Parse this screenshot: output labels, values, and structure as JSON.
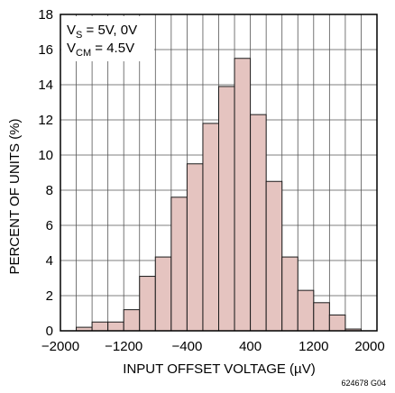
{
  "chart_data": {
    "type": "bar",
    "title": "",
    "xlabel": "INPUT OFFSET VOLTAGE (µV)",
    "ylabel": "PERCENT OF UNITS (%)",
    "xlim": [
      -2000,
      2000
    ],
    "ylim": [
      0,
      18
    ],
    "bin_width": 200,
    "bins_x_left": [
      -2000,
      -1800,
      -1600,
      -1400,
      -1200,
      -1000,
      -800,
      -600,
      -400,
      -200,
      0,
      200,
      400,
      600,
      800,
      1000,
      1200,
      1400,
      1600,
      1800
    ],
    "values": [
      0.0,
      0.2,
      0.5,
      0.5,
      1.2,
      3.1,
      4.2,
      7.6,
      9.5,
      11.8,
      13.9,
      15.5,
      12.3,
      8.5,
      4.2,
      2.3,
      1.6,
      0.9,
      0.1,
      0.0
    ],
    "x_ticks": [
      -2000,
      -1600,
      -1200,
      -800,
      -400,
      0,
      400,
      800,
      1200,
      1600,
      2000
    ],
    "x_tick_labels": [
      "−2000",
      "",
      "−1200",
      "",
      "−400",
      "",
      "400",
      "",
      "1200",
      "",
      "2000"
    ],
    "y_ticks": [
      0,
      2,
      4,
      6,
      8,
      10,
      12,
      14,
      16,
      18
    ],
    "y_tick_labels": [
      "0",
      "2",
      "4",
      "6",
      "8",
      "10",
      "12",
      "14",
      "16",
      "18"
    ],
    "grid": true,
    "legend": "none",
    "colors": {
      "bar_fill": "#e5c4c0",
      "bar_stroke": "#1a1a1a",
      "grid": "#555555",
      "axis": "#000000"
    },
    "annotation": {
      "line1_main": "V",
      "line1_sub": "S",
      "line1_rest": " = 5V, 0V",
      "line2_main": "V",
      "line2_sub": "CM",
      "line2_rest": " = 4.5V"
    },
    "figure_id": "624678 G04"
  }
}
